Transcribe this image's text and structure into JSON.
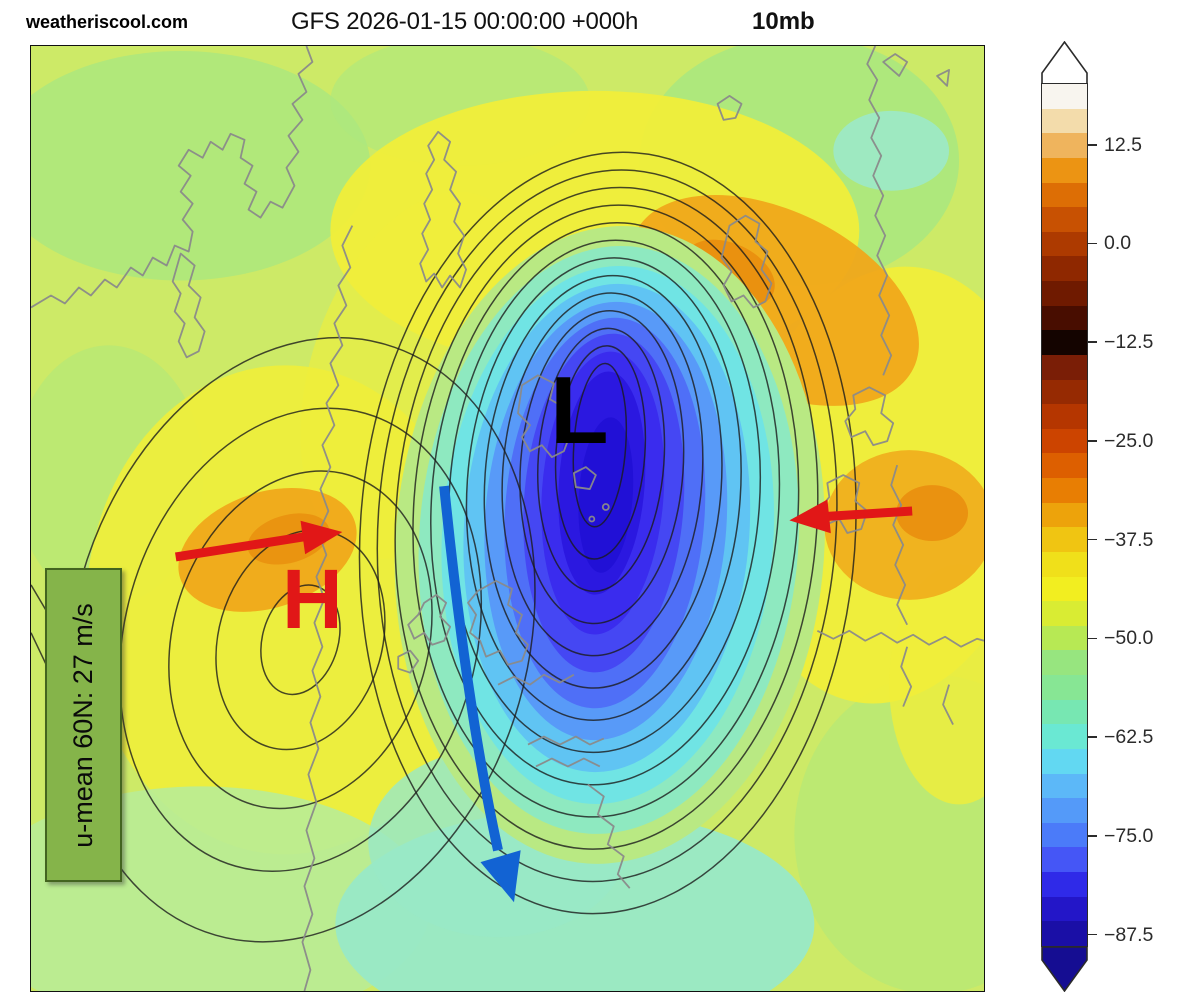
{
  "header": {
    "site": "weatheriscool.com",
    "title": "GFS 2026-01-15 00:00:00 +000h",
    "level": "10mb"
  },
  "map": {
    "low_label": "L",
    "high_label": "H",
    "annotation": "u-mean 60N: 27 m/s",
    "colors": {
      "background": "#cdea67",
      "contour": "#1c1c1c",
      "coastline": "#8a8a8a",
      "red_arrow": "#e11717",
      "blue_arrow": "#1263d3",
      "low_letter": "#000000",
      "high_letter": "#e11717",
      "annotation_fill": "#85b44a",
      "annotation_border": "#43641f",
      "annotation_text": "#0a0a0a"
    },
    "field": {
      "vortex_layers": [
        "#b9e983",
        "#8ee9c0",
        "#70e4e4",
        "#60c4f3",
        "#589af8",
        "#4f6ff7",
        "#4547f3",
        "#3a2cee",
        "#2b18e0",
        "#2110d6"
      ],
      "patches": {
        "green": "#abe87e",
        "aqua": "#9ce9c9",
        "yellow": "#f0ee3a",
        "orange": "#f0a81a",
        "deep_orange": "#e98e0e",
        "bottom_green": "#b9ec96",
        "bottom_aqua": "#98e9c7"
      }
    }
  },
  "colorbar": {
    "ticks": [
      "12.5",
      "0.0",
      "−12.5",
      "−25.0",
      "−37.5",
      "−50.0",
      "−62.5",
      "−75.0",
      "−87.5"
    ],
    "segments": [
      "#f8f5ef",
      "#f3dcab",
      "#efb45d",
      "#ec9413",
      "#dd6e05",
      "#c85102",
      "#ad3a00",
      "#8f2800",
      "#6f1a00",
      "#480d00",
      "#140400",
      "#7a1e06",
      "#962a02",
      "#b53600",
      "#cc4400",
      "#dd5f00",
      "#e87e03",
      "#eda30b",
      "#f0c512",
      "#f0e01a",
      "#f2ee20",
      "#d9ec33",
      "#b7e954",
      "#97e57f",
      "#87e694",
      "#77e7b2",
      "#6ae8d3",
      "#62d8f2",
      "#5cb8f8",
      "#549af9",
      "#4b7bf9",
      "#4556f6",
      "#2f2ae8",
      "#2316c8",
      "#1a0fa6"
    ],
    "over_color": "#ffffff",
    "under_color": "#150d92"
  }
}
